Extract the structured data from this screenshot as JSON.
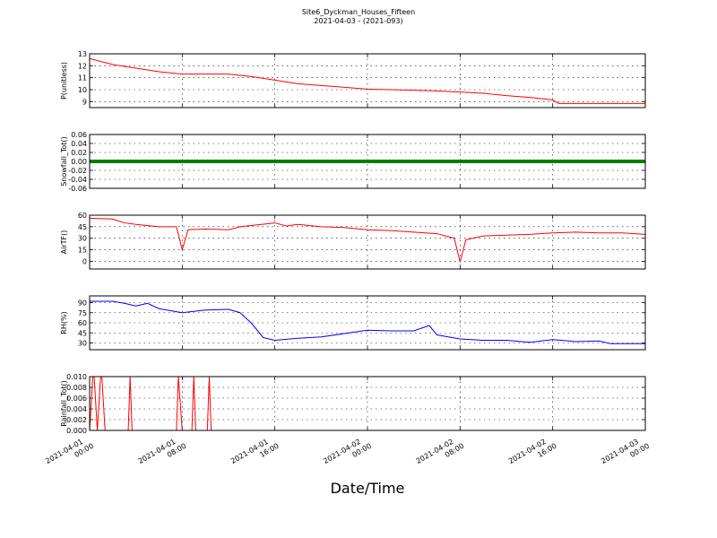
{
  "chart_data": [
    {
      "type": "line",
      "title": "Site6_Dyckman_Houses_Fifteen",
      "subtitle": "2021-04-03 - (2021-093)",
      "ylabel": "P(unitless)",
      "x": [
        "2021-04-01 00:00",
        "2021-04-01 02:00",
        "2021-04-01 04:00",
        "2021-04-01 06:00",
        "2021-04-01 08:00",
        "2021-04-01 10:00",
        "2021-04-01 12:00",
        "2021-04-01 14:00",
        "2021-04-01 16:00",
        "2021-04-01 18:00",
        "2021-04-01 20:00",
        "2021-04-01 22:00",
        "2021-04-02 00:00",
        "2021-04-02 02:00",
        "2021-04-02 04:00",
        "2021-04-02 06:00",
        "2021-04-02 08:00",
        "2021-04-02 10:00",
        "2021-04-02 12:00",
        "2021-04-02 14:00",
        "2021-04-02 16:00",
        "2021-04-02 16:30",
        "2021-04-02 18:00",
        "2021-04-02 20:00",
        "2021-04-02 22:00",
        "2021-04-03 00:00"
      ],
      "series": [
        {
          "color": "#ff0000",
          "values": [
            12.6,
            12.1,
            11.8,
            11.5,
            11.3,
            11.3,
            11.3,
            11.1,
            10.8,
            10.5,
            10.35,
            10.2,
            10.05,
            10.0,
            9.95,
            9.9,
            9.8,
            9.7,
            9.5,
            9.35,
            9.15,
            8.85,
            8.85,
            8.85,
            8.85,
            8.85
          ]
        }
      ],
      "ylim": [
        8.5,
        13
      ],
      "yticks": [
        9,
        10,
        11,
        12,
        13
      ]
    },
    {
      "type": "line",
      "ylabel": "Snowfall_Tot()",
      "x": [
        "2021-04-01 00:00",
        "2021-04-01 08:00",
        "2021-04-01 16:00",
        "2021-04-02 00:00",
        "2021-04-02 08:00",
        "2021-04-02 16:00",
        "2021-04-03 00:00"
      ],
      "series": [
        {
          "color": "#008000",
          "values": [
            0,
            0,
            0,
            0,
            0,
            0,
            0
          ]
        }
      ],
      "ylim": [
        -0.06,
        0.06
      ],
      "yticks": [
        -0.06,
        -0.04,
        -0.02,
        {
          "value": 0,
          "label": "0.00"
        },
        0.02,
        0.04,
        0.06
      ]
    },
    {
      "type": "line",
      "ylabel": "AirTF()",
      "x": [
        "2021-04-01 00:00",
        "2021-04-01 02:00",
        "2021-04-01 03:00",
        "2021-04-01 04:00",
        "2021-04-01 06:00",
        "2021-04-01 07:30",
        "2021-04-01 08:00",
        "2021-04-01 08:30",
        "2021-04-01 10:00",
        "2021-04-01 12:00",
        "2021-04-01 13:00",
        "2021-04-01 16:00",
        "2021-04-01 17:00",
        "2021-04-01 18:00",
        "2021-04-01 20:00",
        "2021-04-01 22:00",
        "2021-04-02 00:00",
        "2021-04-02 02:00",
        "2021-04-02 04:00",
        "2021-04-02 06:00",
        "2021-04-02 07:30",
        "2021-04-02 08:00",
        "2021-04-02 08:30",
        "2021-04-02 10:00",
        "2021-04-02 12:00",
        "2021-04-02 14:00",
        "2021-04-02 16:00",
        "2021-04-02 18:00",
        "2021-04-02 20:00",
        "2021-04-02 22:00",
        "2021-04-03 00:00"
      ],
      "series": [
        {
          "color": "#ff0000",
          "values": [
            56,
            55,
            50,
            48,
            45,
            45,
            15,
            41,
            42,
            41,
            45,
            50,
            46,
            48,
            45,
            44,
            41,
            40,
            38,
            36,
            30,
            -1,
            28,
            33,
            34,
            35,
            37,
            38,
            37,
            37,
            35
          ]
        }
      ],
      "ylim": [
        -10,
        60
      ],
      "yticks": [
        0,
        15,
        30,
        45,
        60
      ]
    },
    {
      "type": "line",
      "ylabel": "RH(%)",
      "x": [
        "2021-04-01 00:00",
        "2021-04-01 02:00",
        "2021-04-01 03:00",
        "2021-04-01 04:00",
        "2021-04-01 05:00",
        "2021-04-01 06:00",
        "2021-04-01 08:00",
        "2021-04-01 10:00",
        "2021-04-01 12:00",
        "2021-04-01 13:00",
        "2021-04-01 14:00",
        "2021-04-01 15:00",
        "2021-04-01 16:00",
        "2021-04-01 18:00",
        "2021-04-01 20:00",
        "2021-04-01 22:00",
        "2021-04-02 00:00",
        "2021-04-02 02:00",
        "2021-04-02 04:00",
        "2021-04-02 05:20",
        "2021-04-02 06:00",
        "2021-04-02 08:00",
        "2021-04-02 10:00",
        "2021-04-02 12:00",
        "2021-04-02 14:00",
        "2021-04-02 16:00",
        "2021-04-02 18:00",
        "2021-04-02 20:00",
        "2021-04-02 21:00",
        "2021-04-03 00:00"
      ],
      "series": [
        {
          "color": "#0000ff",
          "values": [
            92,
            92,
            89,
            85,
            89,
            81,
            75,
            79,
            80,
            75,
            59,
            38,
            34,
            37,
            39,
            44,
            49,
            48,
            48,
            56,
            42,
            36,
            34,
            34,
            31,
            35,
            32,
            33,
            29,
            29
          ]
        }
      ],
      "ylim": [
        20,
        100
      ],
      "yticks": [
        30,
        45,
        60,
        75,
        90
      ]
    },
    {
      "type": "line",
      "ylabel": "Rainfall_Tot()",
      "xlabel": "Date/Time",
      "x": [
        "2021-04-01 00:00",
        "2021-04-01 00:20",
        "2021-04-01 00:40",
        "2021-04-01 01:00",
        "2021-04-01 01:20",
        "2021-04-01 03:20",
        "2021-04-01 03:30",
        "2021-04-01 03:40",
        "2021-04-01 07:30",
        "2021-04-01 07:40",
        "2021-04-01 08:00",
        "2021-04-01 08:50",
        "2021-04-01 09:00",
        "2021-04-01 09:10",
        "2021-04-01 10:10",
        "2021-04-01 10:20",
        "2021-04-01 10:30",
        "2021-04-03 00:00"
      ],
      "series": [
        {
          "color": "#ff0000",
          "values": [
            0,
            0.012,
            0,
            0.012,
            0,
            0,
            0.01,
            0,
            0,
            0.01,
            0,
            0,
            0.01,
            0,
            0,
            0.01,
            0,
            0
          ]
        }
      ],
      "ylim": [
        0,
        0.01
      ],
      "yticks": [
        {
          "value": 0,
          "label": "0.000"
        },
        {
          "value": 0.002,
          "label": "0.002"
        },
        {
          "value": 0.004,
          "label": "0.004"
        },
        {
          "value": 0.006,
          "label": "0.006"
        },
        {
          "value": 0.008,
          "label": "0.008"
        },
        {
          "value": 0.01,
          "label": "0.010"
        }
      ],
      "xlim": [
        "2021-04-01 00:00",
        "2021-04-03 00:00"
      ],
      "xticks": [
        "2021-04-01 00:00",
        "2021-04-01 08:00",
        "2021-04-01 16:00",
        "2021-04-02 00:00",
        "2021-04-02 08:00",
        "2021-04-02 16:00",
        "2021-04-03 00:00"
      ]
    }
  ]
}
